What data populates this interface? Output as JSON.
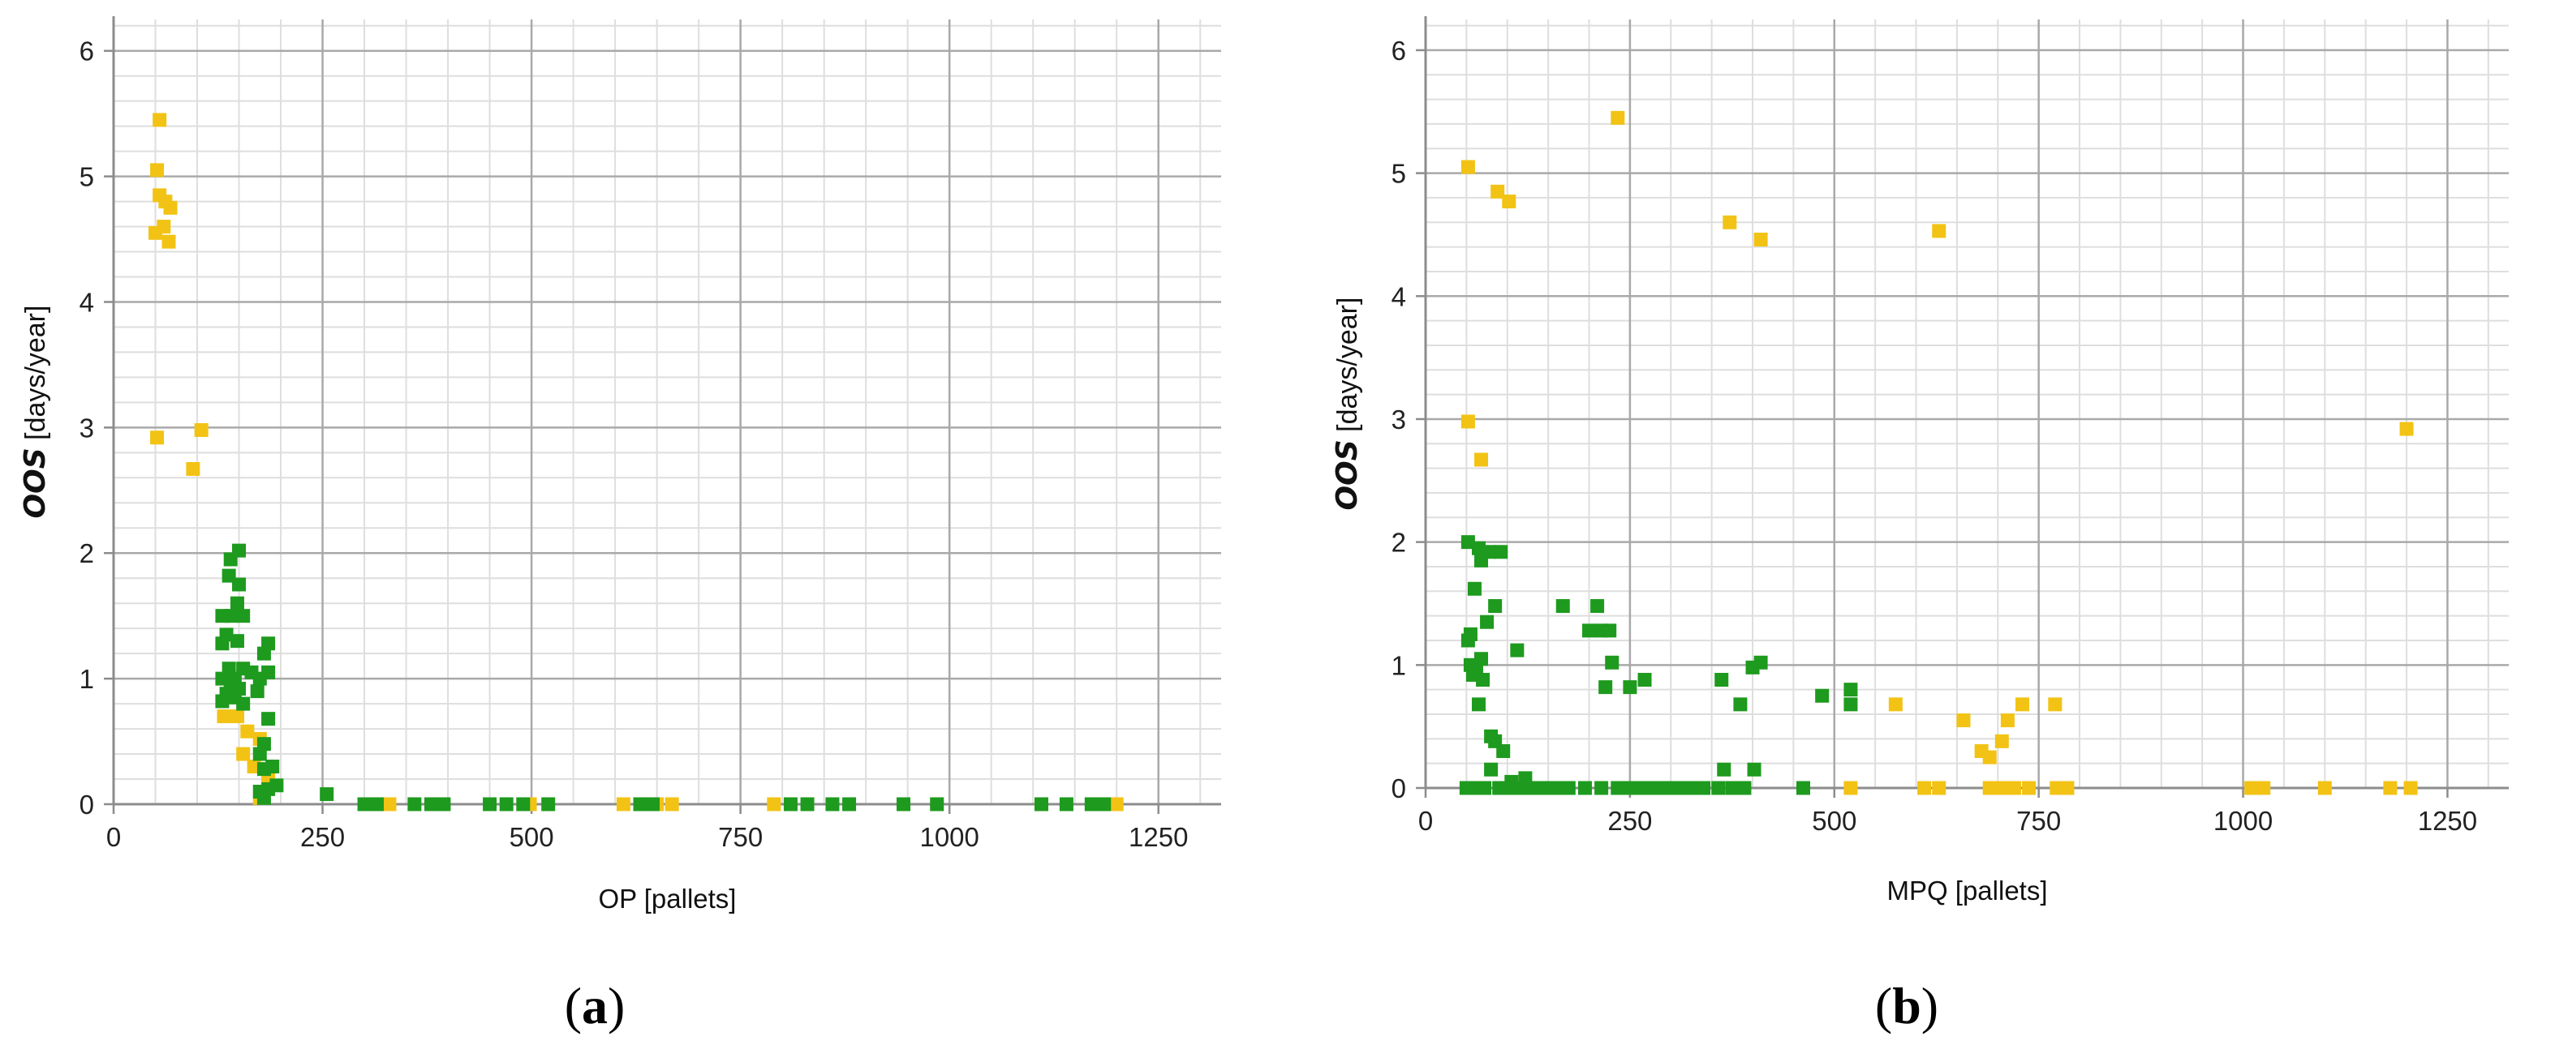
{
  "colors": {
    "yellow": "#f2c314",
    "green": "#1e9a1e",
    "grid_major": "#a9a9a9",
    "grid_minor": "#dedede",
    "axis": "#8c8c8c"
  },
  "panels": [
    {
      "label_open": "(",
      "label_letter": "a",
      "label_close": ")"
    },
    {
      "label_open": "(",
      "label_letter": "b",
      "label_close": ")"
    }
  ],
  "chart_data": [
    {
      "type": "scatter",
      "title": "",
      "xlabel": "OP [pallets]",
      "ylabel_italic": "OOS",
      "ylabel_rest": " [days/year]",
      "xlim": [
        0,
        1325
      ],
      "ylim": [
        0,
        6.25
      ],
      "xticks": [
        0,
        250,
        500,
        750,
        1000,
        1250
      ],
      "yticks": [
        0,
        1,
        2,
        3,
        4,
        5,
        6
      ],
      "grid": true,
      "legend": "none",
      "series": [
        {
          "color": "#f2c314",
          "points": [
            [
              55,
              5.45
            ],
            [
              52,
              5.05
            ],
            [
              55,
              4.85
            ],
            [
              62,
              4.8
            ],
            [
              68,
              4.75
            ],
            [
              60,
              4.6
            ],
            [
              50,
              4.55
            ],
            [
              66,
              4.48
            ],
            [
              105,
              2.98
            ],
            [
              52,
              2.92
            ],
            [
              95,
              2.67
            ],
            [
              132,
              0.7
            ],
            [
              148,
              0.7
            ],
            [
              160,
              0.58
            ],
            [
              175,
              0.52
            ],
            [
              155,
              0.4
            ],
            [
              168,
              0.3
            ],
            [
              185,
              0.22
            ],
            [
              175,
              0.05
            ],
            [
              330,
              0
            ],
            [
              498,
              0
            ],
            [
              610,
              0
            ],
            [
              650,
              0
            ],
            [
              668,
              0
            ],
            [
              790,
              0
            ],
            [
              1200,
              0
            ]
          ]
        },
        {
          "color": "#1e9a1e",
          "points": [
            [
              150,
              2.02
            ],
            [
              140,
              1.95
            ],
            [
              138,
              1.82
            ],
            [
              150,
              1.75
            ],
            [
              148,
              1.6
            ],
            [
              130,
              1.5
            ],
            [
              140,
              1.5
            ],
            [
              155,
              1.5
            ],
            [
              135,
              1.35
            ],
            [
              148,
              1.3
            ],
            [
              130,
              1.28
            ],
            [
              185,
              1.28
            ],
            [
              180,
              1.2
            ],
            [
              138,
              1.08
            ],
            [
              155,
              1.08
            ],
            [
              165,
              1.05
            ],
            [
              185,
              1.05
            ],
            [
              130,
              1.0
            ],
            [
              145,
              1.0
            ],
            [
              175,
              1.0
            ],
            [
              140,
              0.95
            ],
            [
              150,
              0.92
            ],
            [
              172,
              0.9
            ],
            [
              135,
              0.88
            ],
            [
              145,
              0.85
            ],
            [
              130,
              0.82
            ],
            [
              155,
              0.8
            ],
            [
              185,
              0.68
            ],
            [
              180,
              0.48
            ],
            [
              175,
              0.4
            ],
            [
              190,
              0.3
            ],
            [
              180,
              0.28
            ],
            [
              195,
              0.15
            ],
            [
              185,
              0.12
            ],
            [
              175,
              0.1
            ],
            [
              180,
              0.05
            ],
            [
              255,
              0.08
            ],
            [
              300,
              0
            ],
            [
              315,
              0
            ],
            [
              360,
              0
            ],
            [
              380,
              0
            ],
            [
              395,
              0
            ],
            [
              450,
              0
            ],
            [
              470,
              0
            ],
            [
              490,
              0
            ],
            [
              520,
              0
            ],
            [
              630,
              0
            ],
            [
              645,
              0
            ],
            [
              810,
              0
            ],
            [
              830,
              0
            ],
            [
              860,
              0
            ],
            [
              880,
              0
            ],
            [
              945,
              0
            ],
            [
              985,
              0
            ],
            [
              1110,
              0
            ],
            [
              1140,
              0
            ],
            [
              1170,
              0
            ],
            [
              1185,
              0
            ]
          ]
        }
      ]
    },
    {
      "type": "scatter",
      "title": "",
      "xlabel": "MPQ [pallets]",
      "ylabel_italic": "OOS",
      "ylabel_rest": " [days/year]",
      "xlim": [
        0,
        1325
      ],
      "ylim": [
        0,
        6.25
      ],
      "xticks": [
        0,
        250,
        500,
        750,
        1000,
        1250
      ],
      "yticks": [
        0,
        1,
        2,
        3,
        4,
        5,
        6
      ],
      "grid": true,
      "legend": "none",
      "series": [
        {
          "color": "#f2c314",
          "points": [
            [
              235,
              5.45
            ],
            [
              52,
              5.05
            ],
            [
              88,
              4.85
            ],
            [
              102,
              4.77
            ],
            [
              372,
              4.6
            ],
            [
              410,
              4.46
            ],
            [
              628,
              4.53
            ],
            [
              52,
              2.98
            ],
            [
              68,
              2.67
            ],
            [
              1200,
              2.92
            ],
            [
              575,
              0.68
            ],
            [
              658,
              0.55
            ],
            [
              712,
              0.55
            ],
            [
              730,
              0.68
            ],
            [
              770,
              0.68
            ],
            [
              680,
              0.3
            ],
            [
              690,
              0.25
            ],
            [
              705,
              0.38
            ],
            [
              520,
              0
            ],
            [
              610,
              0
            ],
            [
              628,
              0
            ],
            [
              690,
              0
            ],
            [
              705,
              0
            ],
            [
              720,
              0
            ],
            [
              738,
              0
            ],
            [
              772,
              0
            ],
            [
              785,
              0
            ],
            [
              1010,
              0
            ],
            [
              1025,
              0
            ],
            [
              1100,
              0
            ],
            [
              1180,
              0
            ],
            [
              1205,
              0
            ]
          ]
        },
        {
          "color": "#1e9a1e",
          "points": [
            [
              52,
              2.0
            ],
            [
              65,
              1.95
            ],
            [
              78,
              1.92
            ],
            [
              92,
              1.92
            ],
            [
              68,
              1.85
            ],
            [
              60,
              1.62
            ],
            [
              85,
              1.48
            ],
            [
              75,
              1.35
            ],
            [
              55,
              1.25
            ],
            [
              52,
              1.2
            ],
            [
              112,
              1.12
            ],
            [
              68,
              1.05
            ],
            [
              55,
              1.0
            ],
            [
              62,
              0.97
            ],
            [
              58,
              0.92
            ],
            [
              70,
              0.88
            ],
            [
              65,
              0.68
            ],
            [
              80,
              0.42
            ],
            [
              85,
              0.38
            ],
            [
              95,
              0.3
            ],
            [
              80,
              0.15
            ],
            [
              122,
              0.08
            ],
            [
              105,
              0.05
            ],
            [
              168,
              1.48
            ],
            [
              210,
              1.48
            ],
            [
              200,
              1.28
            ],
            [
              215,
              1.28
            ],
            [
              225,
              1.28
            ],
            [
              228,
              1.02
            ],
            [
              220,
              0.82
            ],
            [
              250,
              0.82
            ],
            [
              268,
              0.88
            ],
            [
              362,
              0.88
            ],
            [
              385,
              0.68
            ],
            [
              400,
              0.98
            ],
            [
              410,
              1.02
            ],
            [
              485,
              0.75
            ],
            [
              520,
              0.8
            ],
            [
              520,
              0.68
            ],
            [
              365,
              0.15
            ],
            [
              402,
              0.15
            ],
            [
              50,
              0
            ],
            [
              62,
              0
            ],
            [
              72,
              0
            ],
            [
              90,
              0
            ],
            [
              100,
              0
            ],
            [
              115,
              0
            ],
            [
              130,
              0
            ],
            [
              145,
              0
            ],
            [
              160,
              0
            ],
            [
              175,
              0
            ],
            [
              195,
              0
            ],
            [
              215,
              0
            ],
            [
              235,
              0
            ],
            [
              250,
              0
            ],
            [
              265,
              0
            ],
            [
              280,
              0
            ],
            [
              295,
              0
            ],
            [
              310,
              0
            ],
            [
              325,
              0
            ],
            [
              340,
              0
            ],
            [
              358,
              0
            ],
            [
              375,
              0
            ],
            [
              390,
              0
            ],
            [
              462,
              0
            ]
          ]
        }
      ]
    }
  ]
}
